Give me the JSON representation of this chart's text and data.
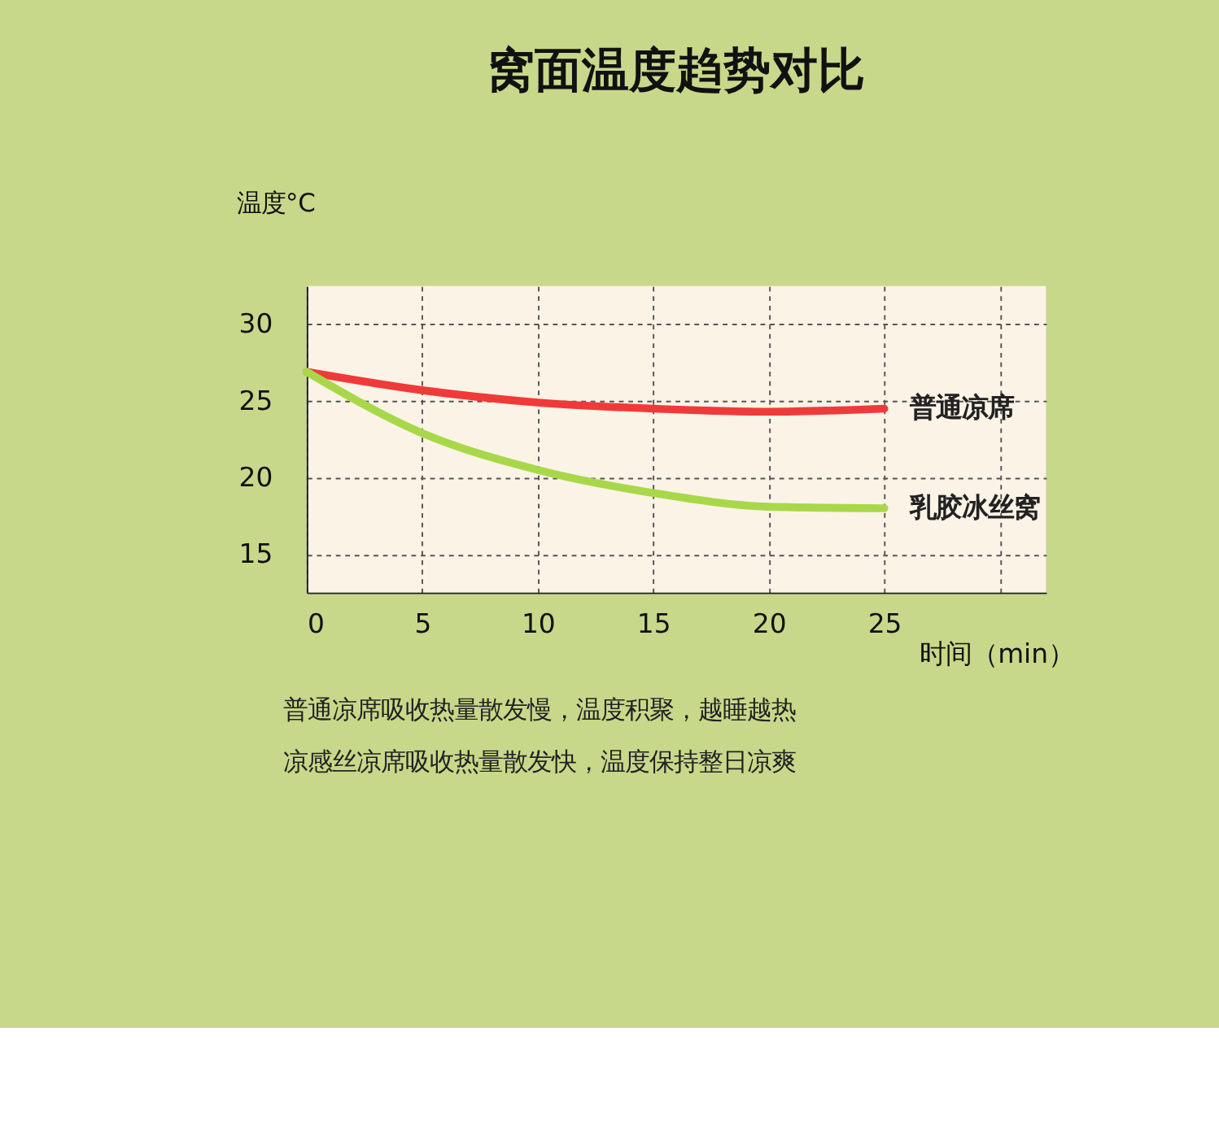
{
  "chart_data": {
    "type": "line",
    "title": "窝面温度趋势对比",
    "xlabel": "时间（min）",
    "ylabel": "温度°C",
    "x": [
      0,
      5,
      10,
      15,
      20,
      25
    ],
    "series": [
      {
        "name": "普通凉席",
        "color": "#f03a3a",
        "values": [
          26.9,
          25.7,
          24.9,
          24.5,
          24.3,
          24.5
        ]
      },
      {
        "name": "乳胶冰丝窝",
        "color": "#a8d84a",
        "values": [
          26.9,
          22.9,
          20.5,
          19.0,
          18.1,
          18.0
        ]
      }
    ],
    "xlim": [
      0,
      32
    ],
    "xticks": [
      0,
      5,
      10,
      15,
      20,
      25,
      {
        "value": 30,
        "label": null
      }
    ],
    "ylim": [
      12.5,
      32.5
    ],
    "yticks": [
      15,
      20,
      25,
      30
    ],
    "grid": true,
    "marker": "none",
    "line_style": "solid",
    "annotations": [
      "普通凉席吸收热量散发慢，温度积聚，越睡越热",
      "凉感丝凉席吸收热量散发快，温度保持整日凉爽"
    ]
  }
}
